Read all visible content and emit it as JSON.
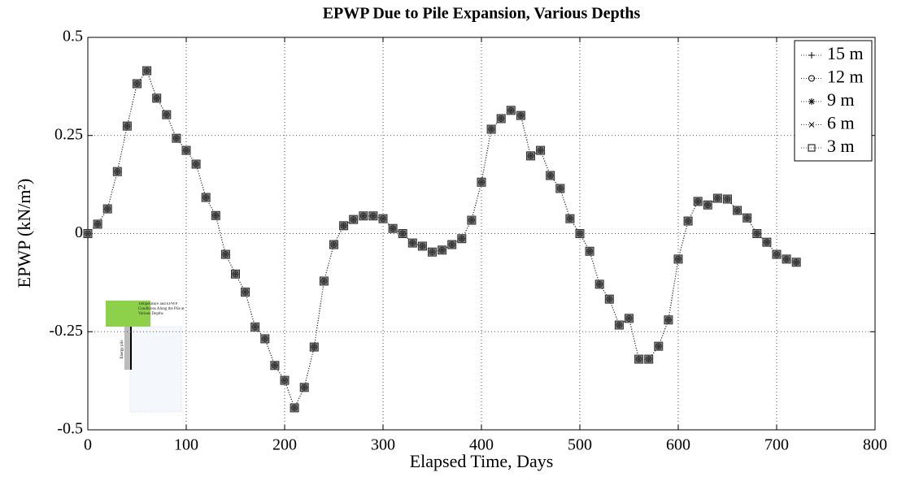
{
  "chart_data": {
    "type": "line",
    "title": "EPWP Due to Pile Expansion, Various Depths",
    "xlabel": "Elapsed Time, Days",
    "ylabel": "EPWP (kN/m²)",
    "x": [
      0,
      10,
      20,
      30,
      40,
      50,
      60,
      70,
      80,
      90,
      100,
      110,
      120,
      130,
      140,
      150,
      160,
      170,
      180,
      190,
      200,
      210,
      220,
      230,
      240,
      250,
      260,
      270,
      280,
      290,
      300,
      310,
      320,
      330,
      340,
      350,
      360,
      370,
      380,
      390,
      400,
      410,
      420,
      430,
      440,
      450,
      460,
      470,
      480,
      490,
      500,
      510,
      520,
      530,
      540,
      550,
      560,
      570,
      580,
      590,
      600,
      610,
      620,
      630,
      640,
      650,
      660,
      670,
      680,
      690,
      700,
      710,
      720
    ],
    "series": [
      {
        "name": "15 m",
        "marker": "plus",
        "color": "#333333",
        "values": [
          0.0,
          0.024,
          0.063,
          0.158,
          0.274,
          0.382,
          0.415,
          0.345,
          0.303,
          0.243,
          0.212,
          0.177,
          0.092,
          0.046,
          -0.053,
          -0.103,
          -0.149,
          -0.238,
          -0.268,
          -0.336,
          -0.374,
          -0.444,
          -0.392,
          -0.289,
          -0.121,
          -0.028,
          0.02,
          0.036,
          0.045,
          0.045,
          0.038,
          0.013,
          0.0,
          -0.024,
          -0.032,
          -0.047,
          -0.042,
          -0.028,
          -0.013,
          0.034,
          0.131,
          0.266,
          0.293,
          0.314,
          0.301,
          0.198,
          0.212,
          0.148,
          0.115,
          0.038,
          0.0,
          -0.045,
          -0.129,
          -0.167,
          -0.233,
          -0.216,
          -0.32,
          -0.32,
          -0.287,
          -0.22,
          -0.065,
          0.032,
          0.082,
          0.073,
          0.09,
          0.088,
          0.059,
          0.04,
          0.0,
          -0.022,
          -0.053,
          -0.065,
          -0.073
        ]
      },
      {
        "name": "12 m",
        "marker": "circle",
        "color": "#333333",
        "values": [
          0.0,
          0.024,
          0.063,
          0.158,
          0.274,
          0.382,
          0.415,
          0.345,
          0.303,
          0.243,
          0.212,
          0.177,
          0.092,
          0.046,
          -0.053,
          -0.103,
          -0.149,
          -0.238,
          -0.268,
          -0.336,
          -0.374,
          -0.444,
          -0.392,
          -0.289,
          -0.121,
          -0.028,
          0.02,
          0.036,
          0.045,
          0.045,
          0.038,
          0.013,
          0.0,
          -0.024,
          -0.032,
          -0.047,
          -0.042,
          -0.028,
          -0.013,
          0.034,
          0.131,
          0.266,
          0.293,
          0.314,
          0.301,
          0.198,
          0.212,
          0.148,
          0.115,
          0.038,
          0.0,
          -0.045,
          -0.129,
          -0.167,
          -0.233,
          -0.216,
          -0.32,
          -0.32,
          -0.287,
          -0.22,
          -0.065,
          0.032,
          0.082,
          0.073,
          0.09,
          0.088,
          0.059,
          0.04,
          0.0,
          -0.022,
          -0.053,
          -0.065,
          -0.073
        ]
      },
      {
        "name": "9 m",
        "marker": "star",
        "color": "#333333",
        "values": [
          0.0,
          0.024,
          0.063,
          0.158,
          0.274,
          0.382,
          0.415,
          0.345,
          0.303,
          0.243,
          0.212,
          0.177,
          0.092,
          0.046,
          -0.053,
          -0.103,
          -0.149,
          -0.238,
          -0.268,
          -0.336,
          -0.374,
          -0.444,
          -0.392,
          -0.289,
          -0.121,
          -0.028,
          0.02,
          0.036,
          0.045,
          0.045,
          0.038,
          0.013,
          0.0,
          -0.024,
          -0.032,
          -0.047,
          -0.042,
          -0.028,
          -0.013,
          0.034,
          0.131,
          0.266,
          0.293,
          0.314,
          0.301,
          0.198,
          0.212,
          0.148,
          0.115,
          0.038,
          0.0,
          -0.045,
          -0.129,
          -0.167,
          -0.233,
          -0.216,
          -0.32,
          -0.32,
          -0.287,
          -0.22,
          -0.065,
          0.032,
          0.082,
          0.073,
          0.09,
          0.088,
          0.059,
          0.04,
          0.0,
          -0.022,
          -0.053,
          -0.065,
          -0.073
        ]
      },
      {
        "name": "6 m",
        "marker": "x",
        "color": "#666666",
        "values": [
          0.0,
          0.024,
          0.063,
          0.158,
          0.274,
          0.382,
          0.415,
          0.345,
          0.303,
          0.243,
          0.212,
          0.177,
          0.092,
          0.046,
          -0.053,
          -0.103,
          -0.149,
          -0.238,
          -0.268,
          -0.336,
          -0.374,
          -0.444,
          -0.392,
          -0.289,
          -0.121,
          -0.028,
          0.02,
          0.036,
          0.045,
          0.045,
          0.038,
          0.013,
          0.0,
          -0.024,
          -0.032,
          -0.047,
          -0.042,
          -0.028,
          -0.013,
          0.034,
          0.131,
          0.266,
          0.293,
          0.314,
          0.301,
          0.198,
          0.212,
          0.148,
          0.115,
          0.038,
          0.0,
          -0.045,
          -0.129,
          -0.167,
          -0.233,
          -0.216,
          -0.32,
          -0.32,
          -0.287,
          -0.22,
          -0.065,
          0.032,
          0.082,
          0.073,
          0.09,
          0.088,
          0.059,
          0.04,
          0.0,
          -0.022,
          -0.053,
          -0.065,
          -0.073
        ]
      },
      {
        "name": "3 m",
        "marker": "square",
        "color": "#222222",
        "values": [
          0.0,
          0.024,
          0.063,
          0.158,
          0.274,
          0.382,
          0.415,
          0.345,
          0.303,
          0.243,
          0.212,
          0.177,
          0.092,
          0.046,
          -0.053,
          -0.103,
          -0.149,
          -0.238,
          -0.268,
          -0.336,
          -0.374,
          -0.444,
          -0.392,
          -0.289,
          -0.121,
          -0.028,
          0.02,
          0.036,
          0.045,
          0.045,
          0.038,
          0.013,
          0.0,
          -0.024,
          -0.032,
          -0.047,
          -0.042,
          -0.028,
          -0.013,
          0.034,
          0.131,
          0.266,
          0.293,
          0.314,
          0.301,
          0.198,
          0.212,
          0.148,
          0.115,
          0.038,
          0.0,
          -0.045,
          -0.129,
          -0.167,
          -0.233,
          -0.216,
          -0.32,
          -0.32,
          -0.287,
          -0.22,
          -0.065,
          0.032,
          0.082,
          0.073,
          0.09,
          0.088,
          0.059,
          0.04,
          0.0,
          -0.022,
          -0.053,
          -0.065,
          -0.073
        ]
      }
    ],
    "xlim": [
      0,
      800
    ],
    "xticks": [
      0,
      100,
      200,
      300,
      400,
      500,
      600,
      700,
      800
    ],
    "ylim": [
      -0.5,
      0.5
    ],
    "yticks": [
      -0.5,
      -0.25,
      0,
      0.25,
      0.5
    ],
    "grid": true,
    "legend": "upper right",
    "inset": {
      "title": "Temperature and EPWP Conditions Along the Pile at Various Depths",
      "pile_label": "Energy pile"
    }
  }
}
